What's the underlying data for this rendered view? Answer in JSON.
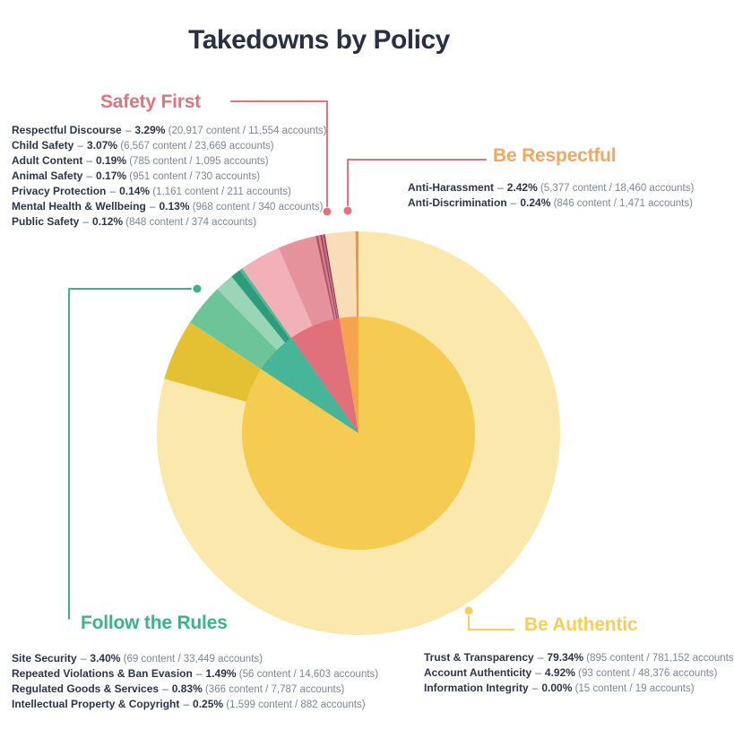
{
  "title": "Takedowns by Policy",
  "text_colors": {
    "primary": "#2B3547",
    "muted": "#7C8694"
  },
  "chart_data": {
    "type": "pie",
    "title": "Takedowns by Policy",
    "legend_position": "callout-labels-around-pie",
    "content_word": "content",
    "accounts_word": "accounts",
    "groups": [
      {
        "id": "be_authentic",
        "label": "Be Authentic",
        "accent": "#F6CE5B",
        "leader_color": "#F6CE5B",
        "inner_color": "#F5CB51",
        "total_pct": 84.26,
        "categories": [
          {
            "label": "Trust & Transparency",
            "pct": 79.34,
            "pct_label": "79.34%",
            "content": "895",
            "accounts": "781,152",
            "color": "#FAE8AD"
          },
          {
            "label": "Account Authenticity",
            "pct": 4.92,
            "pct_label": "4.92%",
            "content": "93",
            "accounts": "48,376",
            "color": "#E3C133"
          },
          {
            "label": "Information Integrity",
            "pct": 0.0,
            "pct_label": "0.00%",
            "content": "15",
            "accounts": "19",
            "color": "#FAE8AD"
          }
        ]
      },
      {
        "id": "follow_the_rules",
        "label": "Follow the Rules",
        "accent": "#3CB28A",
        "leader_color": "#3CB28A",
        "inner_color": "#46B59A",
        "total_pct": 5.97,
        "categories": [
          {
            "label": "Site Security",
            "pct": 3.4,
            "pct_label": "3.40%",
            "content": "69",
            "accounts": "33,449",
            "color": "#6EC499"
          },
          {
            "label": "Repeated Violations & Ban Evasion",
            "pct": 1.49,
            "pct_label": "1.49%",
            "content": "56",
            "accounts": "14,603",
            "color": "#9AD5B7"
          },
          {
            "label": "Regulated Goods & Services",
            "pct": 0.83,
            "pct_label": "0.83%",
            "content": "366",
            "accounts": "7,787",
            "color": "#2E9C7B"
          },
          {
            "label": "Intellectual Property & Copyright",
            "pct": 0.25,
            "pct_label": "0.25%",
            "content": "1,599",
            "accounts": "882",
            "color": "#55B892"
          }
        ]
      },
      {
        "id": "safety_first",
        "label": "Safety First",
        "accent": "#E0737B",
        "leader_color": "#E0737B",
        "inner_color": "#E0707A",
        "total_pct": 7.11,
        "categories": [
          {
            "label": "Respectful Discourse",
            "pct": 3.29,
            "pct_label": "3.29%",
            "content": "20,917",
            "accounts": "11,554",
            "color": "#F2B1B9"
          },
          {
            "label": "Child Safety",
            "pct": 3.07,
            "pct_label": "3.07%",
            "content": "6,567",
            "accounts": "23,669",
            "color": "#E6929C"
          },
          {
            "label": "Adult Content",
            "pct": 0.19,
            "pct_label": "0.19%",
            "content": "785",
            "accounts": "1,095",
            "color": "#B34F63"
          },
          {
            "label": "Animal Safety",
            "pct": 0.17,
            "pct_label": "0.17%",
            "content": "951",
            "accounts": "730",
            "color": "#D5808E"
          },
          {
            "label": "Privacy Protection",
            "pct": 0.14,
            "pct_label": "0.14%",
            "content": "1,161",
            "accounts": "211",
            "color": "#A04258"
          },
          {
            "label": "Mental Health & Wellbeing",
            "pct": 0.13,
            "pct_label": "0.13%",
            "content": "968",
            "accounts": "340",
            "color": "#C66E7E"
          },
          {
            "label": "Public Safety",
            "pct": 0.12,
            "pct_label": "0.12%",
            "content": "848",
            "accounts": "374",
            "color": "#8E3A50"
          }
        ]
      },
      {
        "id": "be_respectful",
        "label": "Be Respectful",
        "accent": "#F1A760",
        "leader_color": "#E0737B",
        "inner_color": "#F6A24E",
        "total_pct": 2.66,
        "categories": [
          {
            "label": "Anti-Harassment",
            "pct": 2.42,
            "pct_label": "2.42%",
            "content": "5,377",
            "accounts": "18,460",
            "color": "#F9DCB8"
          },
          {
            "label": "Anti-Discrimination",
            "pct": 0.24,
            "pct_label": "0.24%",
            "content": "846",
            "accounts": "1,471",
            "color": "#F0953B"
          }
        ]
      }
    ]
  }
}
